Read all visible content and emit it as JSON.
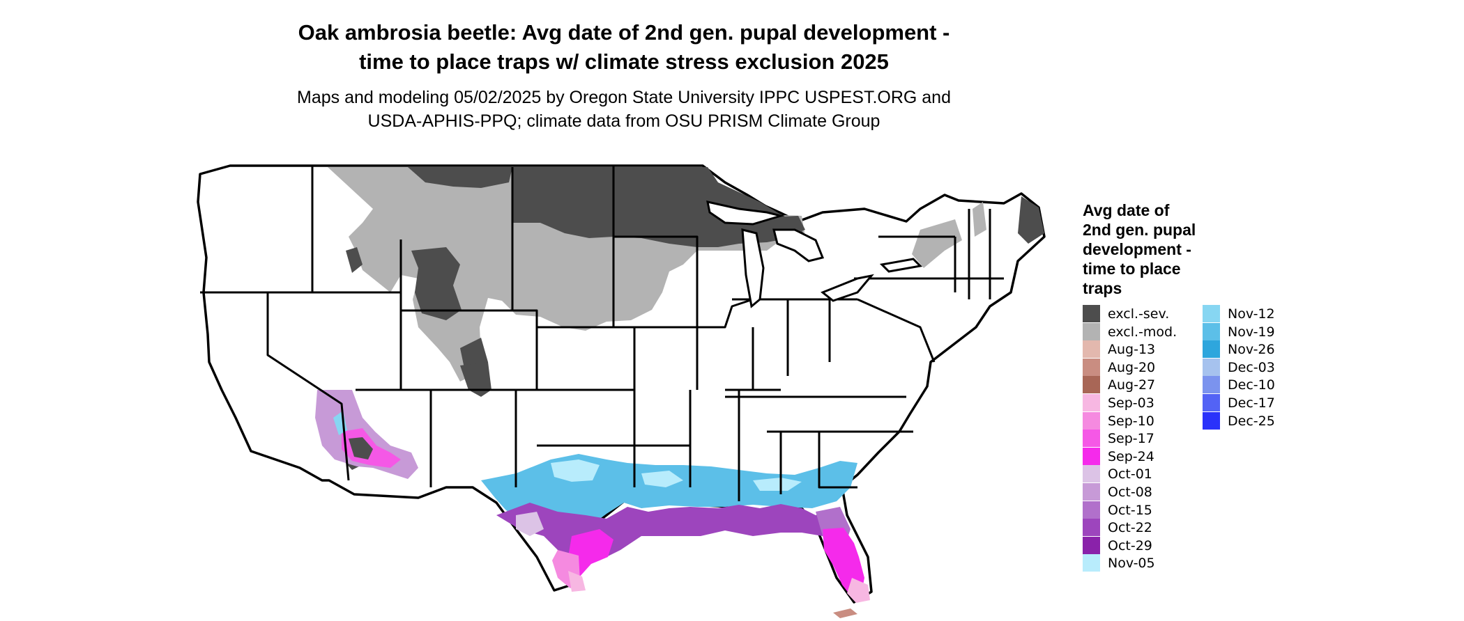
{
  "title": {
    "line1": "Oak ambrosia beetle: Avg date of 2nd gen. pupal development -",
    "line2": "time to place traps w/ climate stress exclusion 2025"
  },
  "subtitle": {
    "line1": "Maps and modeling 05/02/2025 by Oregon State University IPPC USPEST.ORG and",
    "line2": "USDA-APHIS-PPQ; climate data from OSU PRISM Climate Group"
  },
  "legend": {
    "title_lines": [
      "Avg date of",
      "2nd gen. pupal",
      "development -",
      "time to place",
      "traps"
    ],
    "column1": [
      {
        "label": "excl.-sev.",
        "color": "#4d4d4d"
      },
      {
        "label": "excl.-mod.",
        "color": "#b3b3b3"
      },
      {
        "label": "Aug-13",
        "color": "#e3b8ae"
      },
      {
        "label": "Aug-20",
        "color": "#c98d81"
      },
      {
        "label": "Aug-27",
        "color": "#a86656"
      },
      {
        "label": "Sep-03",
        "color": "#f7b7e2"
      },
      {
        "label": "Sep-10",
        "color": "#f58ae0"
      },
      {
        "label": "Sep-17",
        "color": "#f558e6"
      },
      {
        "label": "Sep-24",
        "color": "#f52aeb"
      },
      {
        "label": "Oct-01",
        "color": "#dcc3e6"
      },
      {
        "label": "Oct-08",
        "color": "#c79ad7"
      },
      {
        "label": "Oct-15",
        "color": "#b170cb"
      },
      {
        "label": "Oct-22",
        "color": "#9d45bd"
      },
      {
        "label": "Oct-29",
        "color": "#8a22aa"
      },
      {
        "label": "Nov-05",
        "color": "#b8ecfc"
      }
    ],
    "column2": [
      {
        "label": "Nov-12",
        "color": "#87d6f2"
      },
      {
        "label": "Nov-19",
        "color": "#5cbfe8"
      },
      {
        "label": "Nov-26",
        "color": "#2ea6dd"
      },
      {
        "label": "Dec-03",
        "color": "#a6c2ee"
      },
      {
        "label": "Dec-10",
        "color": "#7b93ee"
      },
      {
        "label": "Dec-17",
        "color": "#5363f5"
      },
      {
        "label": "Dec-25",
        "color": "#2a32fa"
      }
    ]
  }
}
